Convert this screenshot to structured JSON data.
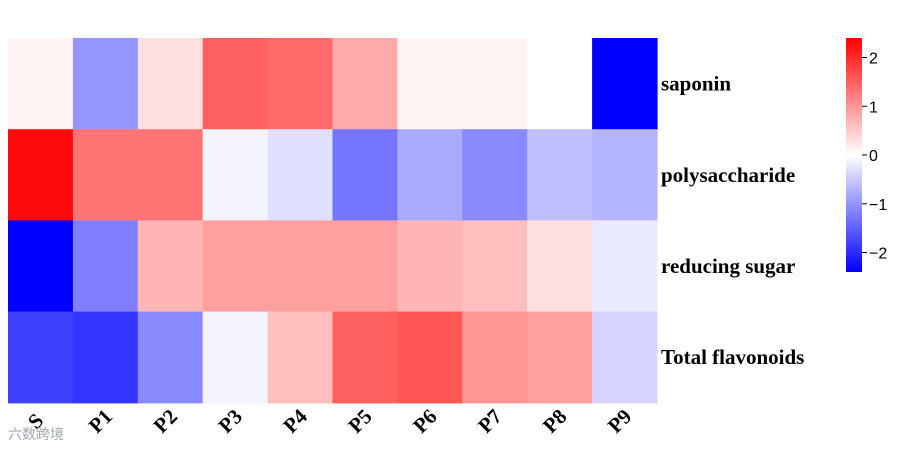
{
  "watermark": "六数跨境",
  "chart_data": {
    "type": "heatmap",
    "title": "",
    "columns": [
      "S",
      "P1",
      "P2",
      "P3",
      "P4",
      "P5",
      "P6",
      "P7",
      "P8",
      "P9"
    ],
    "rows": [
      "saponin",
      "polysaccharide",
      "reducing sugar",
      "Total flavonoids"
    ],
    "values": [
      [
        0.1,
        -1.0,
        0.3,
        1.5,
        1.4,
        0.8,
        0.1,
        0.1,
        0.0,
        -2.4
      ],
      [
        2.3,
        1.3,
        1.3,
        -0.1,
        -0.3,
        -1.3,
        -0.8,
        -1.1,
        -0.6,
        -0.7
      ],
      [
        -2.5,
        -1.2,
        0.7,
        0.9,
        0.9,
        0.9,
        0.7,
        0.6,
        0.3,
        -0.2
      ],
      [
        -1.8,
        -1.9,
        -1.1,
        -0.1,
        0.6,
        1.5,
        1.6,
        1.0,
        0.9,
        -0.4
      ]
    ],
    "colorbar": {
      "min": -2.4,
      "max": 2.4,
      "ticks": [
        2,
        1,
        0,
        -1,
        -2
      ],
      "tick_labels": [
        "2",
        "1",
        "0",
        "−1",
        "−2"
      ],
      "colors": [
        "#0000ff",
        "#ffffff",
        "#ff0000"
      ]
    },
    "grid": false
  }
}
